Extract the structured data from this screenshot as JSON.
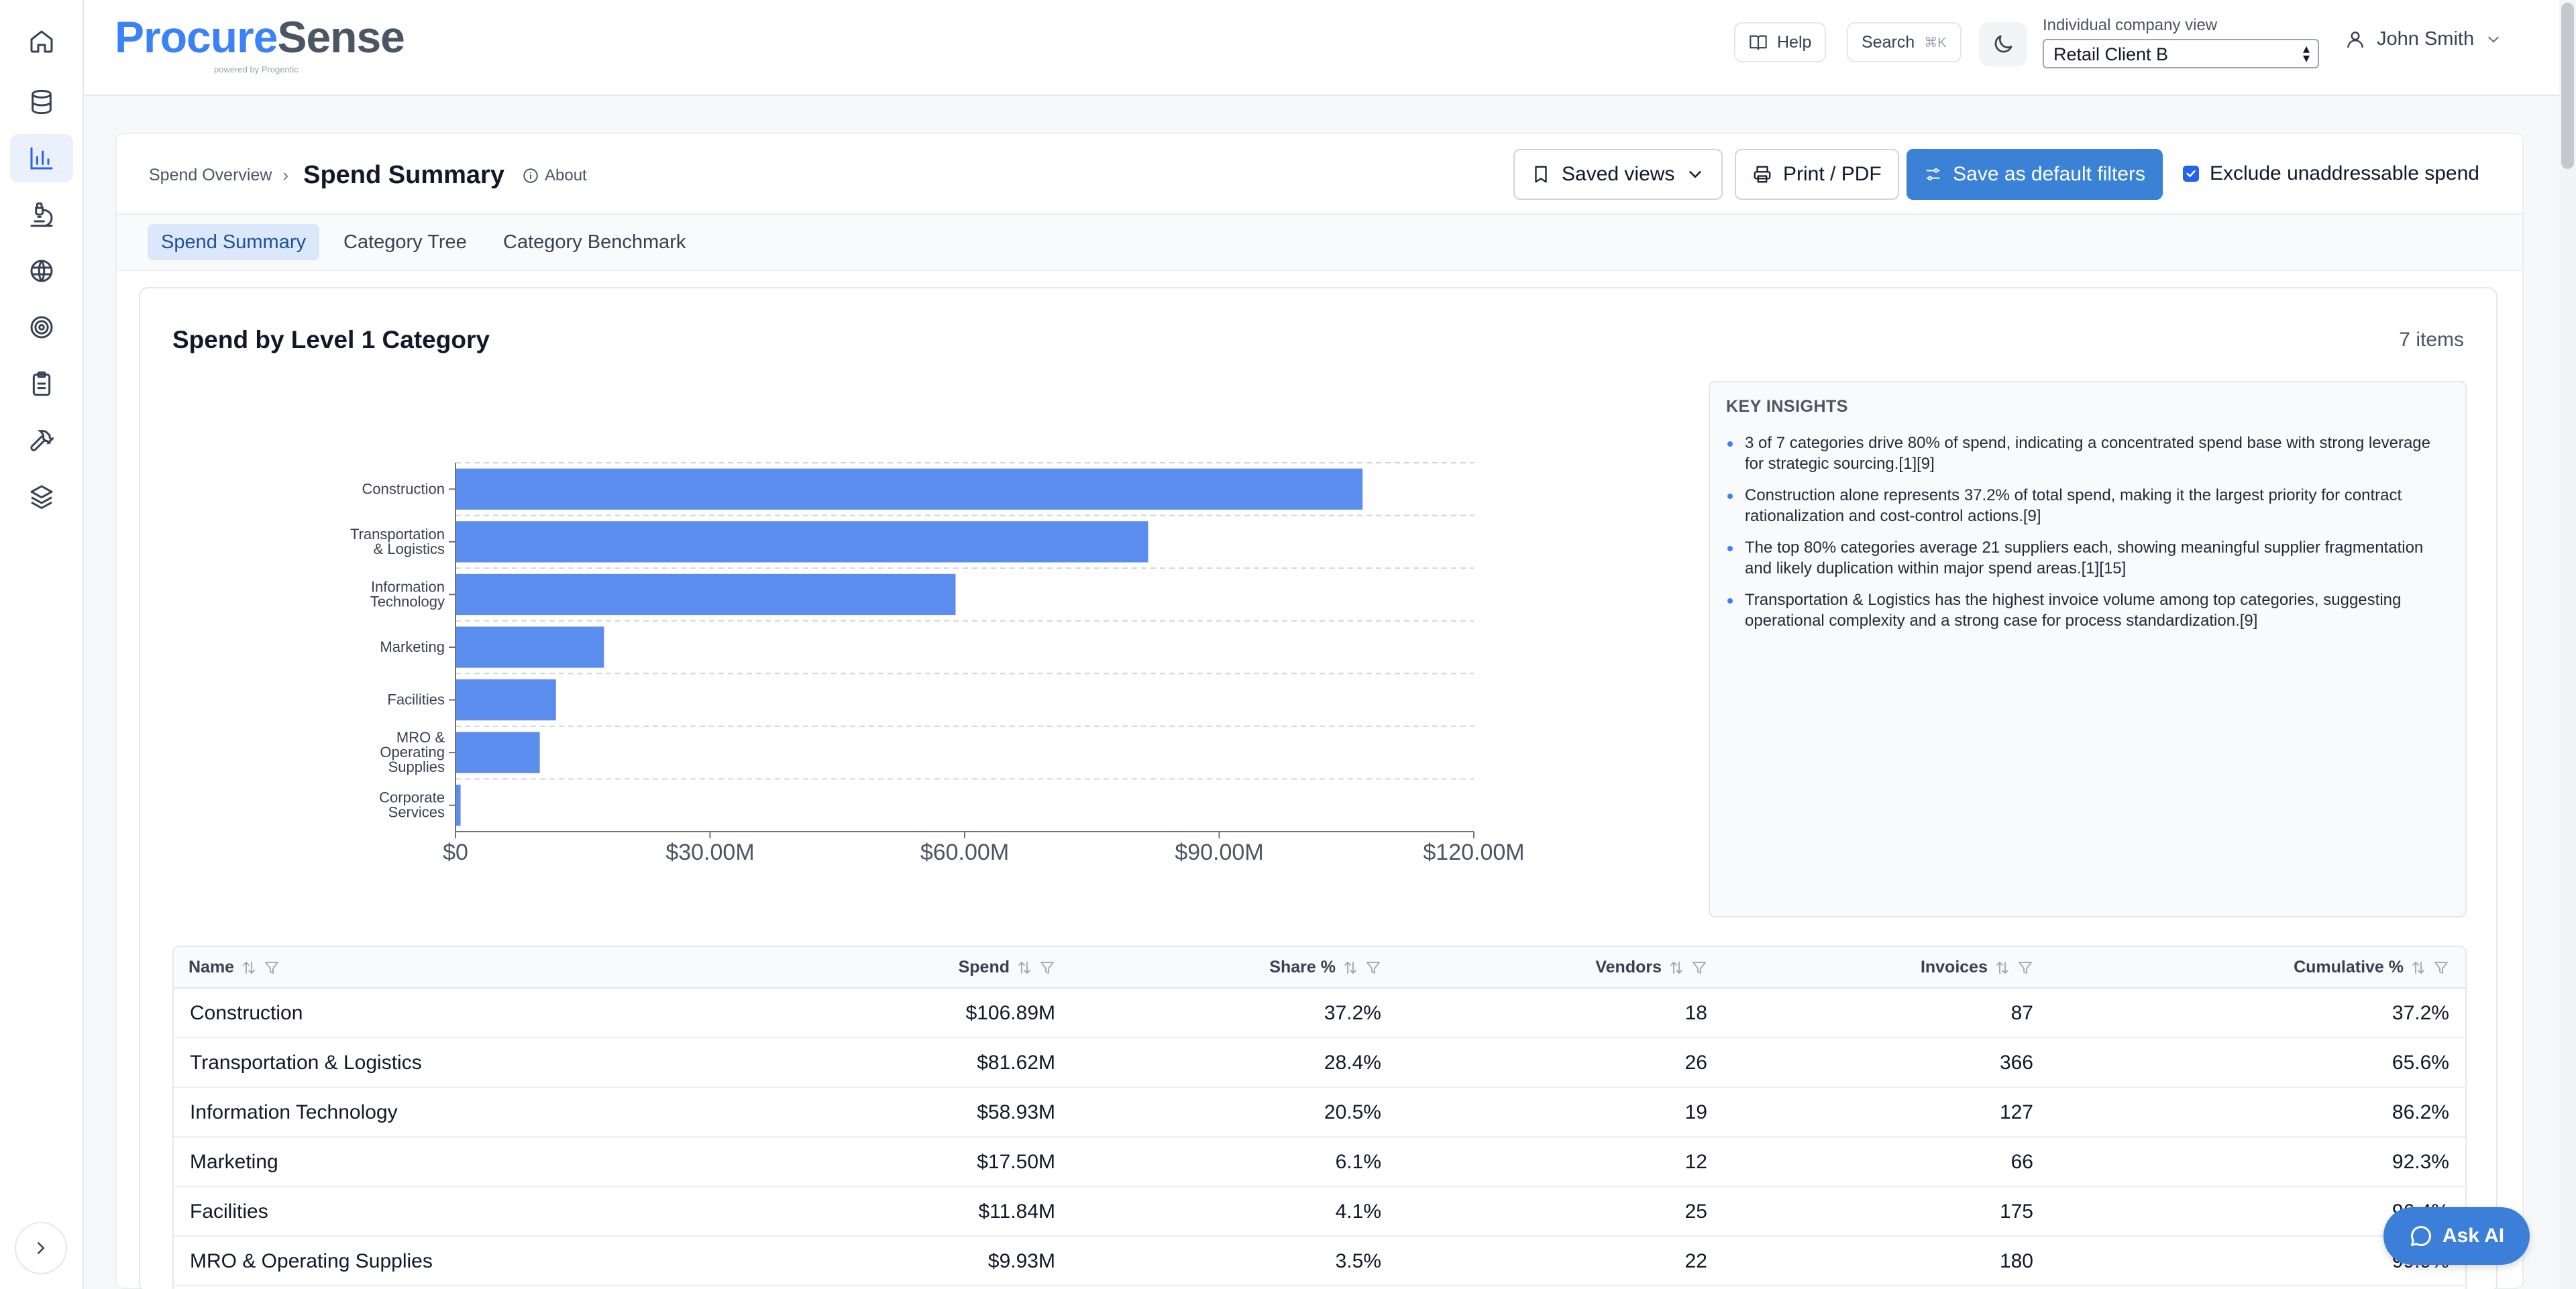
{
  "brand": {
    "name_part1": "Procure",
    "name_part2": "Sense",
    "tagline": "powered by Progentic"
  },
  "header": {
    "help_label": "Help",
    "search_label": "Search",
    "search_shortcut": "⌘K",
    "company_view_label": "Individual company view",
    "company_selected": "Retail Client B",
    "user_name": "John Smith"
  },
  "breadcrumb": {
    "parent": "Spend Overview",
    "current": "Spend Summary",
    "about": "About"
  },
  "actions": {
    "saved_views": "Saved views",
    "print": "Print / PDF",
    "save_default": "Save as default filters",
    "exclude_label": "Exclude unaddressable spend",
    "exclude_checked": true
  },
  "tabs": [
    {
      "label": "Spend Summary",
      "active": true
    },
    {
      "label": "Category Tree",
      "active": false
    },
    {
      "label": "Category Benchmark",
      "active": false
    }
  ],
  "panel": {
    "title": "Spend by Level 1 Category",
    "items_count": "7 items"
  },
  "chart_data": {
    "type": "bar",
    "orientation": "horizontal",
    "categories": [
      "Construction",
      "Transportation & Logistics",
      "Information Technology",
      "Marketing",
      "Facilities",
      "MRO & Operating Supplies",
      "Corporate Services"
    ],
    "category_tick_labels": [
      [
        "Construction"
      ],
      [
        "Transportation",
        "& Logistics"
      ],
      [
        "Information",
        "Technology"
      ],
      [
        "Marketing"
      ],
      [
        "Facilities"
      ],
      [
        "MRO &",
        "Operating",
        "Supplies"
      ],
      [
        "Corporate",
        "Services"
      ]
    ],
    "values": [
      106.89,
      81.62,
      58.93,
      17.5,
      11.84,
      9.93,
      0.6
    ],
    "value_unit": "$M",
    "xlim": [
      0,
      120
    ],
    "x_ticks": [
      0,
      30,
      60,
      90,
      120
    ],
    "x_tick_labels": [
      "$0",
      "$30.00M",
      "$60.00M",
      "$90.00M",
      "$120.00M"
    ],
    "grid": "horizontal dashed",
    "bar_color": "#5b8def"
  },
  "insights": {
    "title": "KEY INSIGHTS",
    "items": [
      "3 of 7 categories drive 80% of spend, indicating a concentrated spend base with strong leverage for strategic sourcing.[1][9]",
      "Construction alone represents 37.2% of total spend, making it the largest priority for contract rationalization and cost-control actions.[9]",
      "The top 80% categories average 21 suppliers each, showing meaningful supplier fragmentation and likely duplication within major spend areas.[1][15]",
      "Transportation & Logistics has the highest invoice volume among top categories, suggesting operational complexity and a strong case for process standardization.[9]"
    ]
  },
  "table": {
    "headers": {
      "name": "Name",
      "spend": "Spend",
      "share": "Share %",
      "vendors": "Vendors",
      "invoices": "Invoices",
      "cumulative": "Cumulative %"
    },
    "rows": [
      {
        "name": "Construction",
        "spend": "$106.89M",
        "share": "37.2%",
        "vendors": "18",
        "invoices": "87",
        "cumulative": "37.2%"
      },
      {
        "name": "Transportation & Logistics",
        "spend": "$81.62M",
        "share": "28.4%",
        "vendors": "26",
        "invoices": "366",
        "cumulative": "65.6%"
      },
      {
        "name": "Information Technology",
        "spend": "$58.93M",
        "share": "20.5%",
        "vendors": "19",
        "invoices": "127",
        "cumulative": "86.2%"
      },
      {
        "name": "Marketing",
        "spend": "$17.50M",
        "share": "6.1%",
        "vendors": "12",
        "invoices": "66",
        "cumulative": "92.3%"
      },
      {
        "name": "Facilities",
        "spend": "$11.84M",
        "share": "4.1%",
        "vendors": "25",
        "invoices": "175",
        "cumulative": "96.4%"
      },
      {
        "name": "MRO & Operating Supplies",
        "spend": "$9.93M",
        "share": "3.5%",
        "vendors": "22",
        "invoices": "180",
        "cumulative": "99.9%"
      }
    ]
  },
  "ask_ai": "Ask AI",
  "colors": {
    "accent": "#3b82d6",
    "brand_blue": "#3b82f6",
    "bar": "#5b8def"
  }
}
